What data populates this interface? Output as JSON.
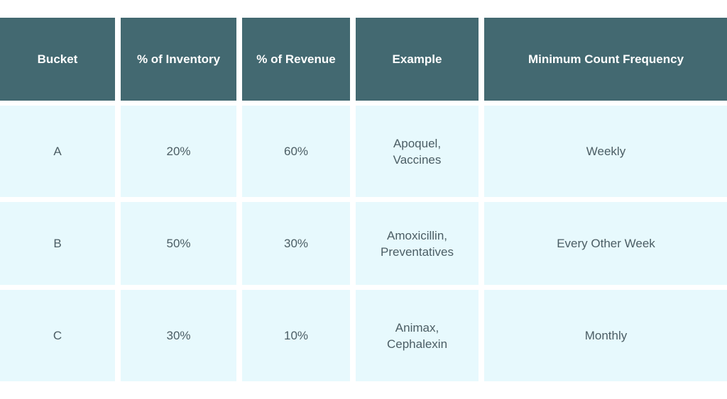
{
  "table": {
    "headers": [
      "Bucket",
      "% of Inventory",
      "% of Revenue",
      "Example",
      "Minimum Count Frequency"
    ],
    "rows": [
      [
        "A",
        "20%",
        "60%",
        "Apoquel,\nVaccines",
        "Weekly"
      ],
      [
        "B",
        "50%",
        "30%",
        "Amoxicillin,\nPreventatives",
        "Every Other Week"
      ],
      [
        "C",
        "30%",
        "10%",
        "Animax,\nCephalexin",
        "Monthly"
      ]
    ]
  },
  "colors": {
    "header_bg": "#436971",
    "header_text": "#ffffff",
    "cell_bg": "#e7f9fd",
    "cell_text": "#4b5d64"
  }
}
